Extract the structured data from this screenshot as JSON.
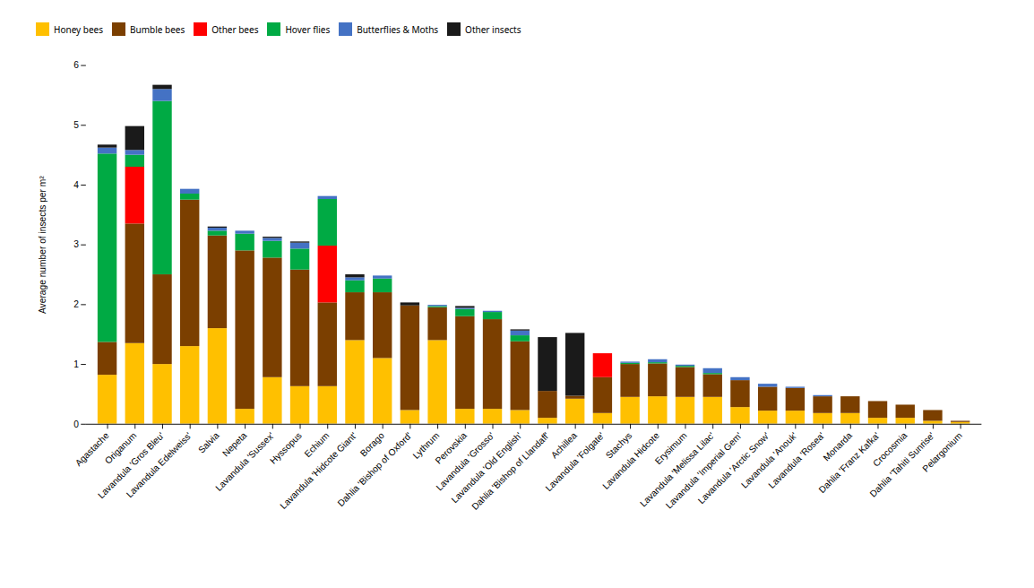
{
  "chart_data": {
    "type": "bar",
    "stacked": true,
    "categories": [
      "Agastache",
      "Origanum",
      "Lavandula 'Gros Bleu'",
      "Lavandula Edelweiss'",
      "Salvia",
      "Nepeta",
      "Lavandula 'Sussex'",
      "Hyssopus",
      "Echium",
      "Lavandula 'Hidcote Giant'",
      "Borago",
      "Dahlia 'Bishop of Oxford'",
      "Lythrum",
      "Perovskia",
      "Lavandula 'Grosso'",
      "Lavandula 'Old English'",
      "Dahlia 'Bishop of Llandaff'",
      "Achillea",
      "Lavandula 'Folgate'",
      "Stachys",
      "Lavandula Hidcote",
      "Erysimum",
      "Lavandula 'Melissa Lilac'",
      "Lavandula 'Imperial Gem'",
      "Lavandula 'Arctic Snow'",
      "Lavandula 'Anouk'",
      "Lavandula 'Rosea'",
      "Monarda",
      "Dahlia 'Franz Kafka'",
      "Crocosmia",
      "Dahlia 'Tahiti Sunrise'",
      "Pelargonium"
    ],
    "series": [
      {
        "name": "Honey bees",
        "color": "#FFC000",
        "values": [
          0.82,
          1.35,
          1.0,
          1.3,
          1.6,
          0.25,
          0.78,
          0.63,
          0.63,
          1.4,
          1.1,
          0.23,
          1.4,
          0.25,
          0.25,
          0.23,
          0.1,
          0.42,
          0.18,
          0.45,
          0.46,
          0.45,
          0.45,
          0.28,
          0.22,
          0.22,
          0.18,
          0.18,
          0.1,
          0.1,
          0.05,
          0.03
        ]
      },
      {
        "name": "Bumble bees",
        "color": "#7B3F00",
        "values": [
          0.55,
          2.0,
          1.5,
          2.45,
          1.55,
          2.65,
          2.0,
          1.95,
          1.4,
          0.8,
          1.1,
          1.75,
          0.55,
          1.55,
          1.5,
          1.15,
          0.45,
          0.05,
          0.6,
          0.55,
          0.55,
          0.5,
          0.38,
          0.45,
          0.4,
          0.38,
          0.28,
          0.28,
          0.28,
          0.22,
          0.18,
          0.02
        ]
      },
      {
        "name": "Other bees",
        "color": "#FF0000",
        "values": [
          0.0,
          0.95,
          0.0,
          0.0,
          0.0,
          0.0,
          0.0,
          0.0,
          0.95,
          0.0,
          0.0,
          0.0,
          0.0,
          0.0,
          0.0,
          0.0,
          0.0,
          0.0,
          0.4,
          0.0,
          0.0,
          0.0,
          0.0,
          0.0,
          0.0,
          0.0,
          0.0,
          0.0,
          0.0,
          0.0,
          0.0,
          0.0
        ]
      },
      {
        "name": "Hover flies",
        "color": "#00AA44",
        "values": [
          3.15,
          0.2,
          2.9,
          0.1,
          0.08,
          0.28,
          0.28,
          0.35,
          0.78,
          0.2,
          0.23,
          0.0,
          0.02,
          0.12,
          0.12,
          0.1,
          0.0,
          0.0,
          0.0,
          0.02,
          0.02,
          0.02,
          0.02,
          0.0,
          0.0,
          0.0,
          0.0,
          0.0,
          0.0,
          0.0,
          0.0,
          0.0
        ]
      },
      {
        "name": "Butterflies & Moths",
        "color": "#4472C4",
        "values": [
          0.1,
          0.08,
          0.2,
          0.08,
          0.05,
          0.05,
          0.05,
          0.1,
          0.05,
          0.05,
          0.05,
          0.0,
          0.02,
          0.02,
          0.02,
          0.08,
          0.0,
          0.0,
          0.0,
          0.02,
          0.05,
          0.02,
          0.08,
          0.05,
          0.05,
          0.02,
          0.02,
          0.0,
          0.0,
          0.0,
          0.0,
          0.0
        ]
      },
      {
        "name": "Other insects",
        "color": "#1A1A1A",
        "values": [
          0.05,
          0.4,
          0.07,
          0.0,
          0.02,
          0.0,
          0.02,
          0.02,
          0.0,
          0.05,
          0.0,
          0.05,
          0.0,
          0.03,
          0.0,
          0.02,
          0.9,
          1.05,
          0.0,
          0.0,
          0.0,
          0.0,
          0.0,
          0.0,
          0.0,
          0.0,
          0.0,
          0.0,
          0.0,
          0.0,
          0.0,
          0.0
        ]
      }
    ],
    "ylabel": "Average number of insects per m²",
    "ylim": [
      0,
      6.0
    ],
    "yticks": [
      0,
      1,
      2,
      3,
      4,
      5,
      6
    ],
    "grid": false,
    "legend": "top"
  }
}
